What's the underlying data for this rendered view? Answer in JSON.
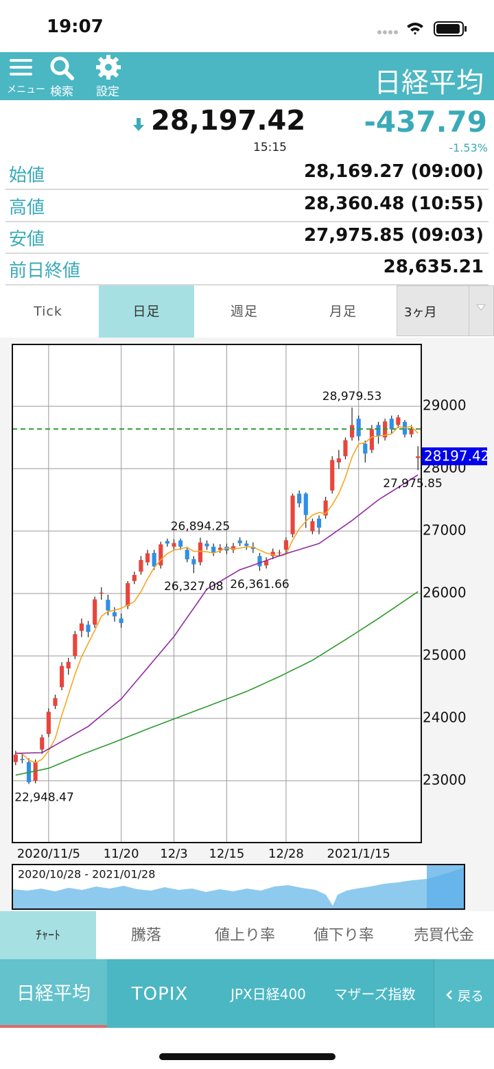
{
  "status_bar": {
    "time": "19:07"
  },
  "header": {
    "menu": "メニュー",
    "search": "検索",
    "settings": "設定",
    "title": "日経平均"
  },
  "quote": {
    "price": "28,197.42",
    "time": "15:15",
    "change": "-437.79",
    "change_pct": "-1.53%"
  },
  "stats": [
    {
      "label": "始値",
      "value": "28,169.27 (09:00)"
    },
    {
      "label": "高値",
      "value": "28,360.48 (10:55)"
    },
    {
      "label": "安値",
      "value": "27,975.85 (09:03)"
    },
    {
      "label": "前日終値",
      "value": "28,635.21"
    }
  ],
  "period_tabs": [
    "Tick",
    "日足",
    "週足",
    "月足"
  ],
  "range_select": "3ヶ月",
  "chart_data": {
    "type": "candlestick",
    "categories": [
      null,
      null,
      null,
      null,
      null,
      "2020/11/5",
      null,
      null,
      null,
      null,
      null,
      null,
      null,
      null,
      null,
      null,
      "11/20",
      null,
      null,
      null,
      null,
      null,
      null,
      null,
      "12/3",
      null,
      null,
      null,
      null,
      null,
      null,
      null,
      "12/15",
      null,
      null,
      null,
      null,
      null,
      null,
      null,
      null,
      "12/28",
      null,
      null,
      null,
      null,
      null,
      null,
      null,
      null,
      null,
      null,
      "2021/1/15",
      null,
      null,
      null,
      null,
      null,
      null,
      null,
      null,
      null
    ],
    "open": [
      23300,
      23350,
      23300,
      23000,
      23500,
      23750,
      24200,
      24500,
      24800,
      25000,
      25400,
      25500,
      25500,
      26000,
      25900,
      25700,
      25600,
      25800,
      26200,
      26350,
      26500,
      26650,
      26450,
      26840,
      26750,
      26850,
      26700,
      26550,
      26500,
      26800,
      26750,
      26700,
      26750,
      26700,
      26850,
      26800,
      26750,
      26600,
      26450,
      26600,
      26650,
      26700,
      26950,
      27600,
      27600,
      27000,
      27200,
      27250,
      27650,
      28100,
      28200,
      28500,
      28800,
      28400,
      28300,
      28700,
      28500,
      28800,
      28700,
      28750,
      28550,
      28169.27
    ],
    "high": [
      23480,
      23420,
      23360,
      23340,
      23740,
      24160,
      24380,
      24900,
      24970,
      25400,
      25600,
      25560,
      25950,
      26100,
      25980,
      25780,
      25680,
      26200,
      26350,
      26600,
      26700,
      26700,
      26830,
      26880,
      26870,
      26880,
      26750,
      26600,
      26894.25,
      26850,
      26800,
      26790,
      26800,
      26810,
      26900,
      26850,
      26820,
      26650,
      26580,
      26720,
      26700,
      26900,
      27600,
      27650,
      27620,
      27200,
      27250,
      27550,
      28200,
      28300,
      28500,
      28979.53,
      28850,
      28450,
      28700,
      28750,
      28800,
      28850,
      28860,
      28780,
      28700,
      28360.48
    ],
    "low": [
      23250,
      23280,
      22948.47,
      22960,
      23430,
      23700,
      24150,
      24450,
      24700,
      24950,
      25300,
      25300,
      25450,
      25900,
      25650,
      25550,
      25450,
      25750,
      26150,
      26300,
      26450,
      26380,
      26400,
      26750,
      26700,
      26700,
      26500,
      26327.08,
      26450,
      26700,
      26600,
      26650,
      26630,
      26650,
      26760,
      26700,
      26650,
      26361.66,
      26400,
      26550,
      26600,
      26650,
      26900,
      27380,
      27050,
      26950,
      26950,
      27200,
      27600,
      28000,
      28150,
      28450,
      28450,
      28100,
      28250,
      28400,
      28450,
      28550,
      28650,
      28500,
      28500,
      27975.85
    ],
    "close": [
      23418,
      23331,
      22977,
      23295,
      23695,
      24105,
      24325,
      24839,
      24905,
      25349,
      25520,
      25385,
      25906,
      26014,
      25728,
      25634,
      25527,
      26165,
      26297,
      26537,
      26644,
      26433,
      26787,
      26800,
      26809,
      26751,
      26547,
      26467,
      26817,
      26756,
      26652,
      26732,
      26687,
      26757,
      26806,
      26763,
      26714,
      26436,
      26524,
      26668,
      26656,
      26854,
      27568,
      27444,
      27258,
      27158,
      27055,
      27490,
      28139,
      28164,
      28456,
      28698,
      28519,
      28242,
      28633,
      28523,
      28756,
      28631,
      28822,
      28546,
      28635.21,
      28197.42
    ],
    "up_color": "#e8453c",
    "down_color": "#2f8fe8",
    "moving_averages": [
      {
        "color": "#f5a623",
        "values": [
          23450,
          23430,
          23330,
          23290,
          23343,
          23481,
          23679,
          24052,
          24374,
          24705,
          24988,
          25200,
          25413,
          25635,
          25711,
          25733,
          25762,
          25814,
          25870,
          26032,
          26234,
          26415,
          26540,
          26640,
          26695,
          26716,
          26739,
          26675,
          26678,
          26668,
          26648,
          26685,
          26729,
          26717,
          26727,
          26749,
          26745,
          26695,
          26649,
          26621,
          26600,
          26628,
          26854,
          27038,
          27156,
          27256,
          27297,
          27281,
          27420,
          27601,
          27861,
          28189,
          28395,
          28416,
          28510,
          28523,
          28535,
          28557,
          28673,
          28656,
          28678,
          28566
        ]
      },
      {
        "color": "#8e2a9e",
        "values": [
          23440,
          23442,
          23445,
          23448,
          23450,
          23510,
          23570,
          23630,
          23690,
          23750,
          23810,
          23870,
          23958,
          24046,
          24134,
          24222,
          24310,
          24435,
          24560,
          24685,
          24810,
          24935,
          25060,
          25185,
          25310,
          25462,
          25614,
          25766,
          25918,
          26070,
          26132,
          26194,
          26256,
          26318,
          26380,
          26417,
          26454,
          26491,
          26528,
          26566,
          26603,
          26640,
          26672,
          26704,
          26736,
          26768,
          26800,
          26874,
          26948,
          27022,
          27096,
          27170,
          27252,
          27335,
          27418,
          27500,
          27567,
          27633,
          27700,
          27767,
          27833,
          27900
        ]
      },
      {
        "color": "#2e9a2e",
        "values": [
          23090,
          23112,
          23134,
          23156,
          23178,
          23200,
          23244,
          23288,
          23332,
          23376,
          23420,
          23460,
          23500,
          23540,
          23580,
          23620,
          23662,
          23704,
          23746,
          23788,
          23830,
          23870,
          23910,
          23950,
          23990,
          24030,
          24070,
          24110,
          24150,
          24190,
          24230,
          24270,
          24310,
          24350,
          24390,
          24430,
          24478,
          24526,
          24574,
          24622,
          24670,
          24722,
          24774,
          24826,
          24878,
          24930,
          24996,
          25062,
          25128,
          25194,
          25260,
          25328,
          25396,
          25464,
          25532,
          25600,
          25672,
          25743,
          25815,
          25887,
          25958,
          26030
        ]
      }
    ],
    "ylim": [
      22010,
      29990
    ],
    "yticks": [
      23000,
      24000,
      25000,
      26000,
      27000,
      28000,
      29000
    ],
    "grid": true,
    "reference_line": {
      "value": 28635.21,
      "color": "#2e9a2e"
    },
    "price_tag": {
      "value": 28197.42,
      "label": "28197.42",
      "color": "#0000ee"
    },
    "annotations": [
      {
        "value": 28979.53,
        "label": "28,979.53"
      },
      {
        "value": 27975.85,
        "label": "27,975.85"
      },
      {
        "value": 26894.25,
        "label": "26,894.25"
      },
      {
        "value": 26327.08,
        "label": "26,327.08"
      },
      {
        "value": 26361.66,
        "label": "26,361.66"
      },
      {
        "value": 22948.47,
        "label": "22,948.47"
      }
    ],
    "navigator_range": "2020/10/28 - 2021/01/28"
  },
  "market_tabs": [
    "ﾁｬｰﾄ",
    "騰落",
    "値上り率",
    "値下り率",
    "売買代金"
  ],
  "index_tabs": [
    "日経平均",
    "TOPIX",
    "JPX日経400",
    "マザーズ指数",
    "戻る"
  ]
}
